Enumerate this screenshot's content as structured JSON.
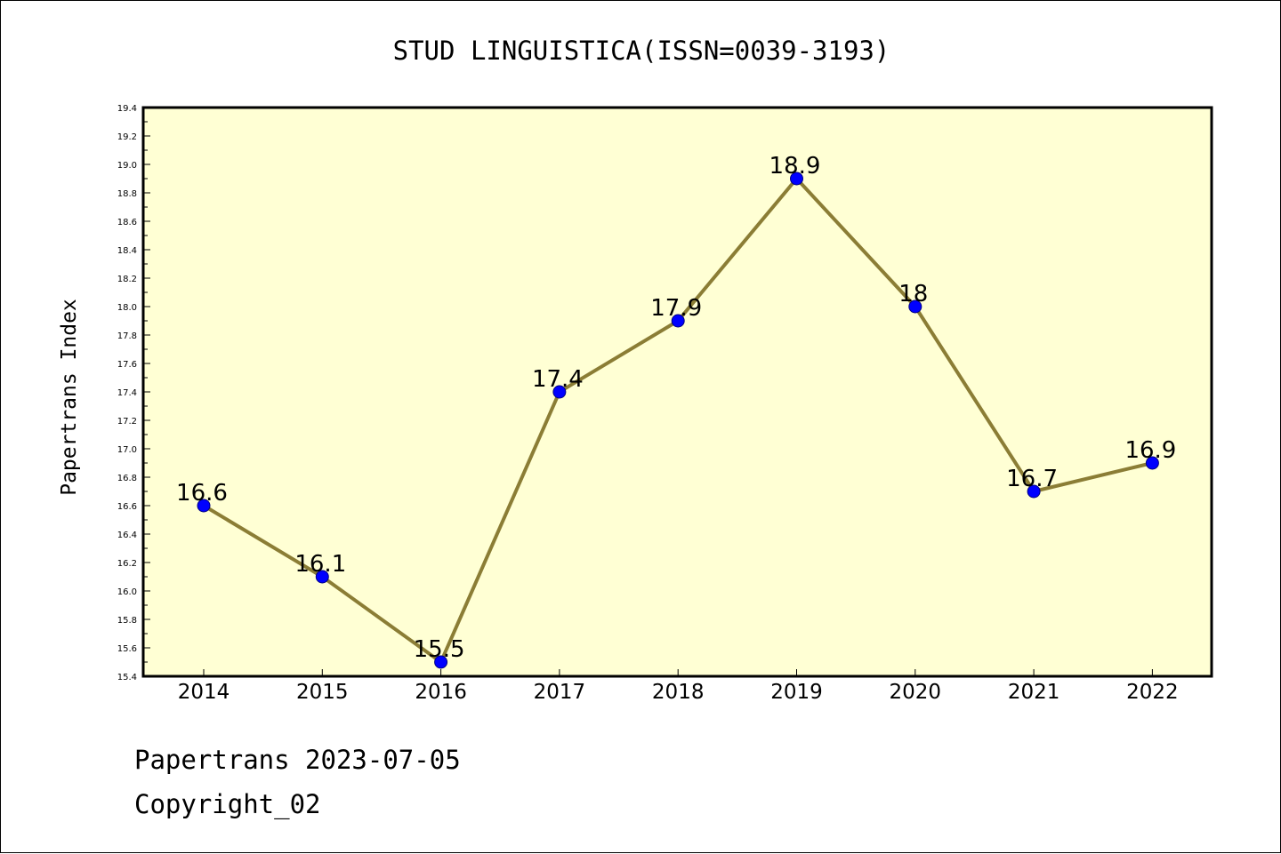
{
  "chart_data": {
    "type": "line",
    "title": "STUD LINGUISTICA(ISSN=0039-3193)",
    "ylabel": "Papertrans Index",
    "xlabel": "",
    "categories": [
      "2014",
      "2015",
      "2016",
      "2017",
      "2018",
      "2019",
      "2020",
      "2021",
      "2022"
    ],
    "series": [
      {
        "values": [
          16.6,
          16.1,
          15.5,
          17.4,
          17.9,
          18.9,
          18.0,
          16.7,
          16.9
        ],
        "labels": [
          "16.6",
          "16.1",
          "15.5",
          "17.4",
          "17.9",
          "18.9",
          "18",
          "16.7",
          "16.9"
        ]
      }
    ],
    "ylim": [
      15.4,
      19.4
    ],
    "yticks": [
      "15.4",
      "15.6",
      "15.8",
      "16.0",
      "16.2",
      "16.4",
      "16.6",
      "16.8",
      "17.0",
      "17.2",
      "17.4",
      "17.6",
      "17.8",
      "18.0",
      "18.2",
      "18.4",
      "18.6",
      "18.8",
      "19.0",
      "19.2",
      "19.4"
    ],
    "grid": false,
    "legend": "none",
    "colors": {
      "plot_background": "#ffffd4",
      "line": "#8b7d35",
      "marker": "#0000ff"
    }
  },
  "footer": {
    "line1": "Papertrans 2023-07-05",
    "line2": "Copyright_02"
  }
}
